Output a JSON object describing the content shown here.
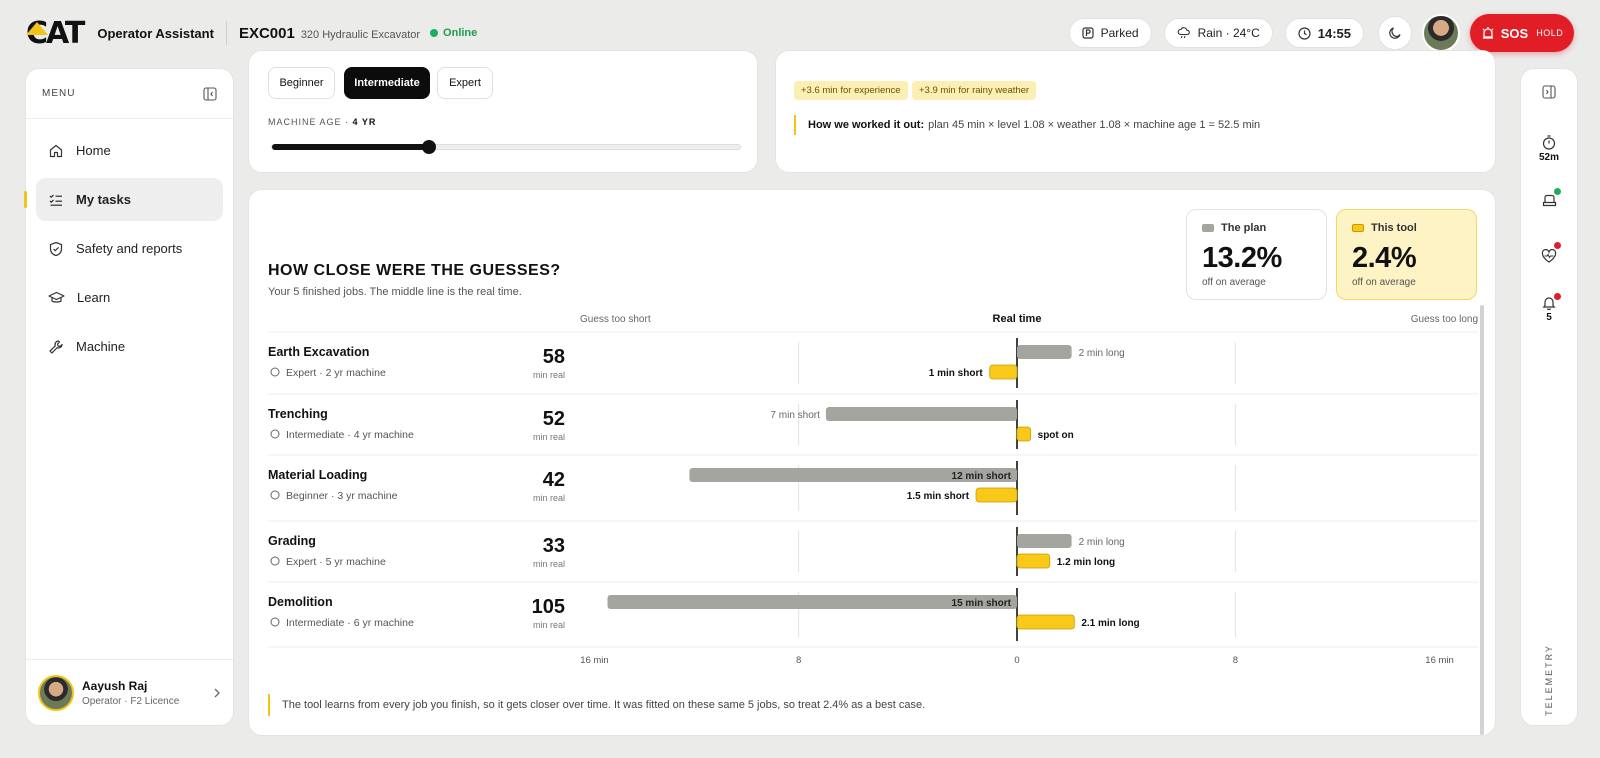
{
  "header": {
    "brand": "CAT",
    "app_title": "Operator Assistant",
    "machine_id": "EXC001",
    "machine_model": "320 Hydraulic Excavator",
    "status": "Online",
    "parked": "Parked",
    "weather": "Rain · 24°C",
    "time": "14:55",
    "sos_label": "SOS",
    "sos_hold": "HOLD"
  },
  "colors": {
    "accent": "#f2c318",
    "sos": "#e11e26",
    "plan": "#a5a5a0",
    "tool": "#f9c91a",
    "online": "#1fae5b"
  },
  "sidebar": {
    "menu_label": "MENU",
    "items": [
      {
        "label": "Home",
        "icon": "home-icon"
      },
      {
        "label": "My tasks",
        "icon": "tasks-icon",
        "active": true
      },
      {
        "label": "Safety and reports",
        "icon": "shield-icon"
      },
      {
        "label": "Learn",
        "icon": "graduation-cap-icon"
      },
      {
        "label": "Machine",
        "icon": "wrench-icon"
      }
    ],
    "user": {
      "name": "Aayush Raj",
      "role": "Operator · F2 Licence"
    }
  },
  "rail": {
    "timer": "52m",
    "alerts": "5",
    "label": "TELEMETRY"
  },
  "experience": {
    "options": [
      "Beginner",
      "Intermediate",
      "Expert"
    ],
    "selected": "Intermediate",
    "age_label": "MACHINE AGE ·",
    "age_value": "4 YR",
    "age_years": 4,
    "age_max": 12
  },
  "estimate": {
    "chips": [
      "+3.6 min for experience",
      "+3.9 min for rainy weather"
    ],
    "worked_label": "How we worked it out:",
    "worked_text": "plan 45 min × level 1.08 × weather 1.08 × machine age 1 = 52.5 min"
  },
  "guesses": {
    "title": "HOW CLOSE WERE THE GUESSES?",
    "subtitle": "Your 5 finished jobs. The middle line is the real time.",
    "stats": {
      "plan": {
        "label": "The plan",
        "value": "13.2%",
        "sub": "off on average"
      },
      "tool": {
        "label": "This tool",
        "value": "2.4%",
        "sub": "off on average"
      }
    },
    "axis_left": "Guess too short",
    "axis_center": "Real time",
    "axis_right": "Guess too long",
    "unit_label": "min real",
    "explain": "The tool learns from every job you finish, so it gets closer over time. It was fitted on these same 5 jobs, so treat 2.4% as a best case."
  },
  "chart_data": {
    "type": "bar",
    "orientation": "horizontal-diverging",
    "xlim": [
      -16,
      16
    ],
    "ticks": [
      -16,
      -8,
      0,
      8,
      16
    ],
    "tick_labels": [
      "16 min",
      "8",
      "0",
      "8",
      "16 min"
    ],
    "rows": [
      {
        "name": "Earth Excavation",
        "meta": "Expert · 2 yr machine",
        "icon": "sun-icon",
        "real": "58",
        "plan": 2,
        "plan_label": "2 min long",
        "tool": -1,
        "tool_label": "1 min short"
      },
      {
        "name": "Trenching",
        "meta": "Intermediate · 4 yr machine",
        "icon": "rain-cloud-icon",
        "real": "52",
        "plan": -7,
        "plan_label": "7 min short",
        "tool": 0.5,
        "tool_label": "spot on"
      },
      {
        "name": "Material Loading",
        "meta": "Beginner · 3 yr machine",
        "icon": "cloud-icon",
        "real": "42",
        "plan": -12,
        "plan_label": "12 min short",
        "tool": -1.5,
        "tool_label": "1.5 min short"
      },
      {
        "name": "Grading",
        "meta": "Expert · 5 yr machine",
        "icon": "sun-icon",
        "real": "33",
        "plan": 2,
        "plan_label": "2 min long",
        "tool": 1.2,
        "tool_label": "1.2 min long"
      },
      {
        "name": "Demolition",
        "meta": "Intermediate · 6 yr machine",
        "icon": "wind-icon",
        "real": "105",
        "plan": -15,
        "plan_label": "15 min short",
        "tool": 2.1,
        "tool_label": "2.1 min long"
      }
    ]
  }
}
